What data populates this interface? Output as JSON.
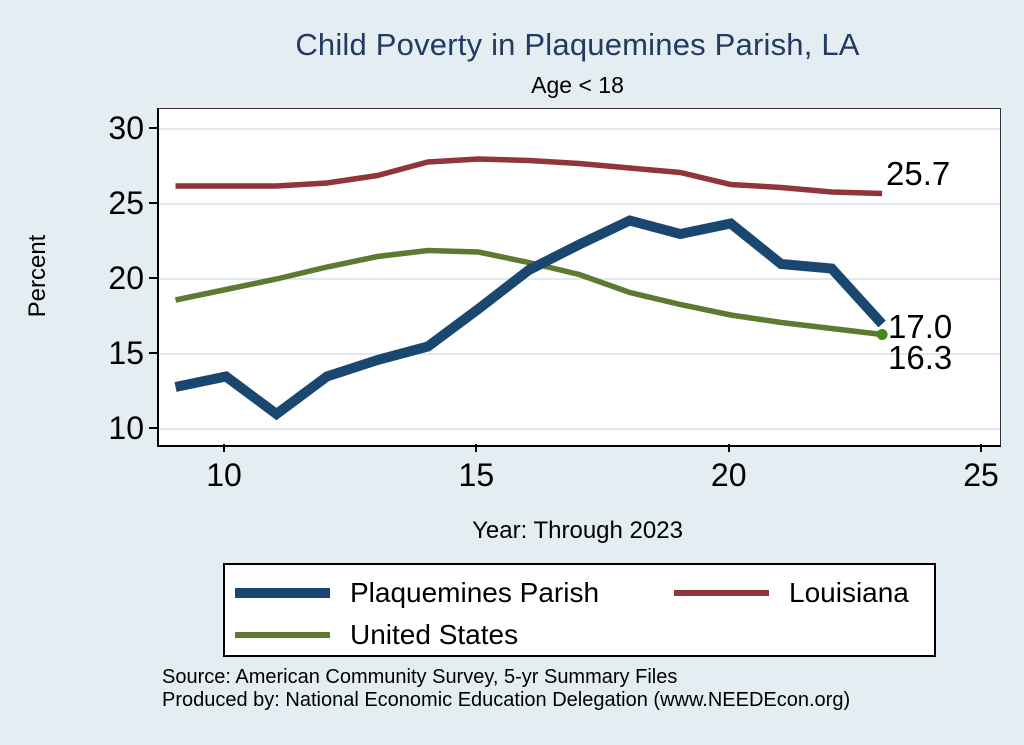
{
  "page": {
    "title": "Child Poverty in Plaquemines Parish, LA",
    "subtitle": "Age < 18"
  },
  "chart_data": {
    "type": "line",
    "title": "Child Poverty in Plaquemines Parish, LA",
    "subtitle": "Age < 18",
    "xlabel": "Year: Through 2023",
    "ylabel": "Percent",
    "x_note": "x axis shows 2-digit years (2009-2023 data, axis drawn through 25)",
    "x": [
      9,
      10,
      11,
      12,
      13,
      14,
      15,
      16,
      17,
      18,
      19,
      20,
      21,
      22,
      23
    ],
    "x_ticks": [
      10,
      15,
      20,
      25
    ],
    "x_tick_labels": [
      "10",
      "15",
      "20",
      "25"
    ],
    "y_ticks": [
      10,
      15,
      20,
      25,
      30
    ],
    "y_tick_labels": [
      "10",
      "15",
      "20",
      "25",
      "30"
    ],
    "xlim": [
      8.7,
      25.3
    ],
    "ylim": [
      8.9,
      31.3
    ],
    "grid": true,
    "legend_position": "bottom",
    "plot_bg": "#ffffff",
    "page_bg": "#e3edf2",
    "grid_color": "#dfe9ef",
    "series": [
      {
        "name": "Plaquemines Parish",
        "color": "#1a476f",
        "width": 10,
        "values": [
          12.8,
          13.5,
          11.0,
          13.5,
          14.6,
          15.5,
          18.0,
          20.6,
          22.3,
          23.9,
          23.0,
          23.7,
          21.0,
          20.7,
          17.0
        ],
        "end_label": "17.0",
        "end_dot": false
      },
      {
        "name": "Louisiana",
        "color": "#90353b",
        "width": 5.5,
        "values": [
          26.2,
          26.2,
          26.2,
          26.4,
          26.9,
          27.8,
          28.0,
          27.9,
          27.7,
          27.4,
          27.1,
          26.3,
          26.1,
          25.8,
          25.7
        ],
        "end_label": "25.7",
        "end_dot": false
      },
      {
        "name": "United States",
        "color": "#5c7a30",
        "width": 5.5,
        "values": [
          18.6,
          19.3,
          20.0,
          20.8,
          21.5,
          21.9,
          21.8,
          21.1,
          20.3,
          19.1,
          18.3,
          17.6,
          17.1,
          16.7,
          16.3
        ],
        "end_label": "16.3",
        "end_dot": true,
        "end_dot_color": "#46871c"
      }
    ]
  },
  "footer": {
    "source_line1": "Source: American Community Survey, 5-yr Summary Files",
    "source_line2": "Produced by: National Economic Education Delegation (www.NEEDEcon.org)"
  }
}
